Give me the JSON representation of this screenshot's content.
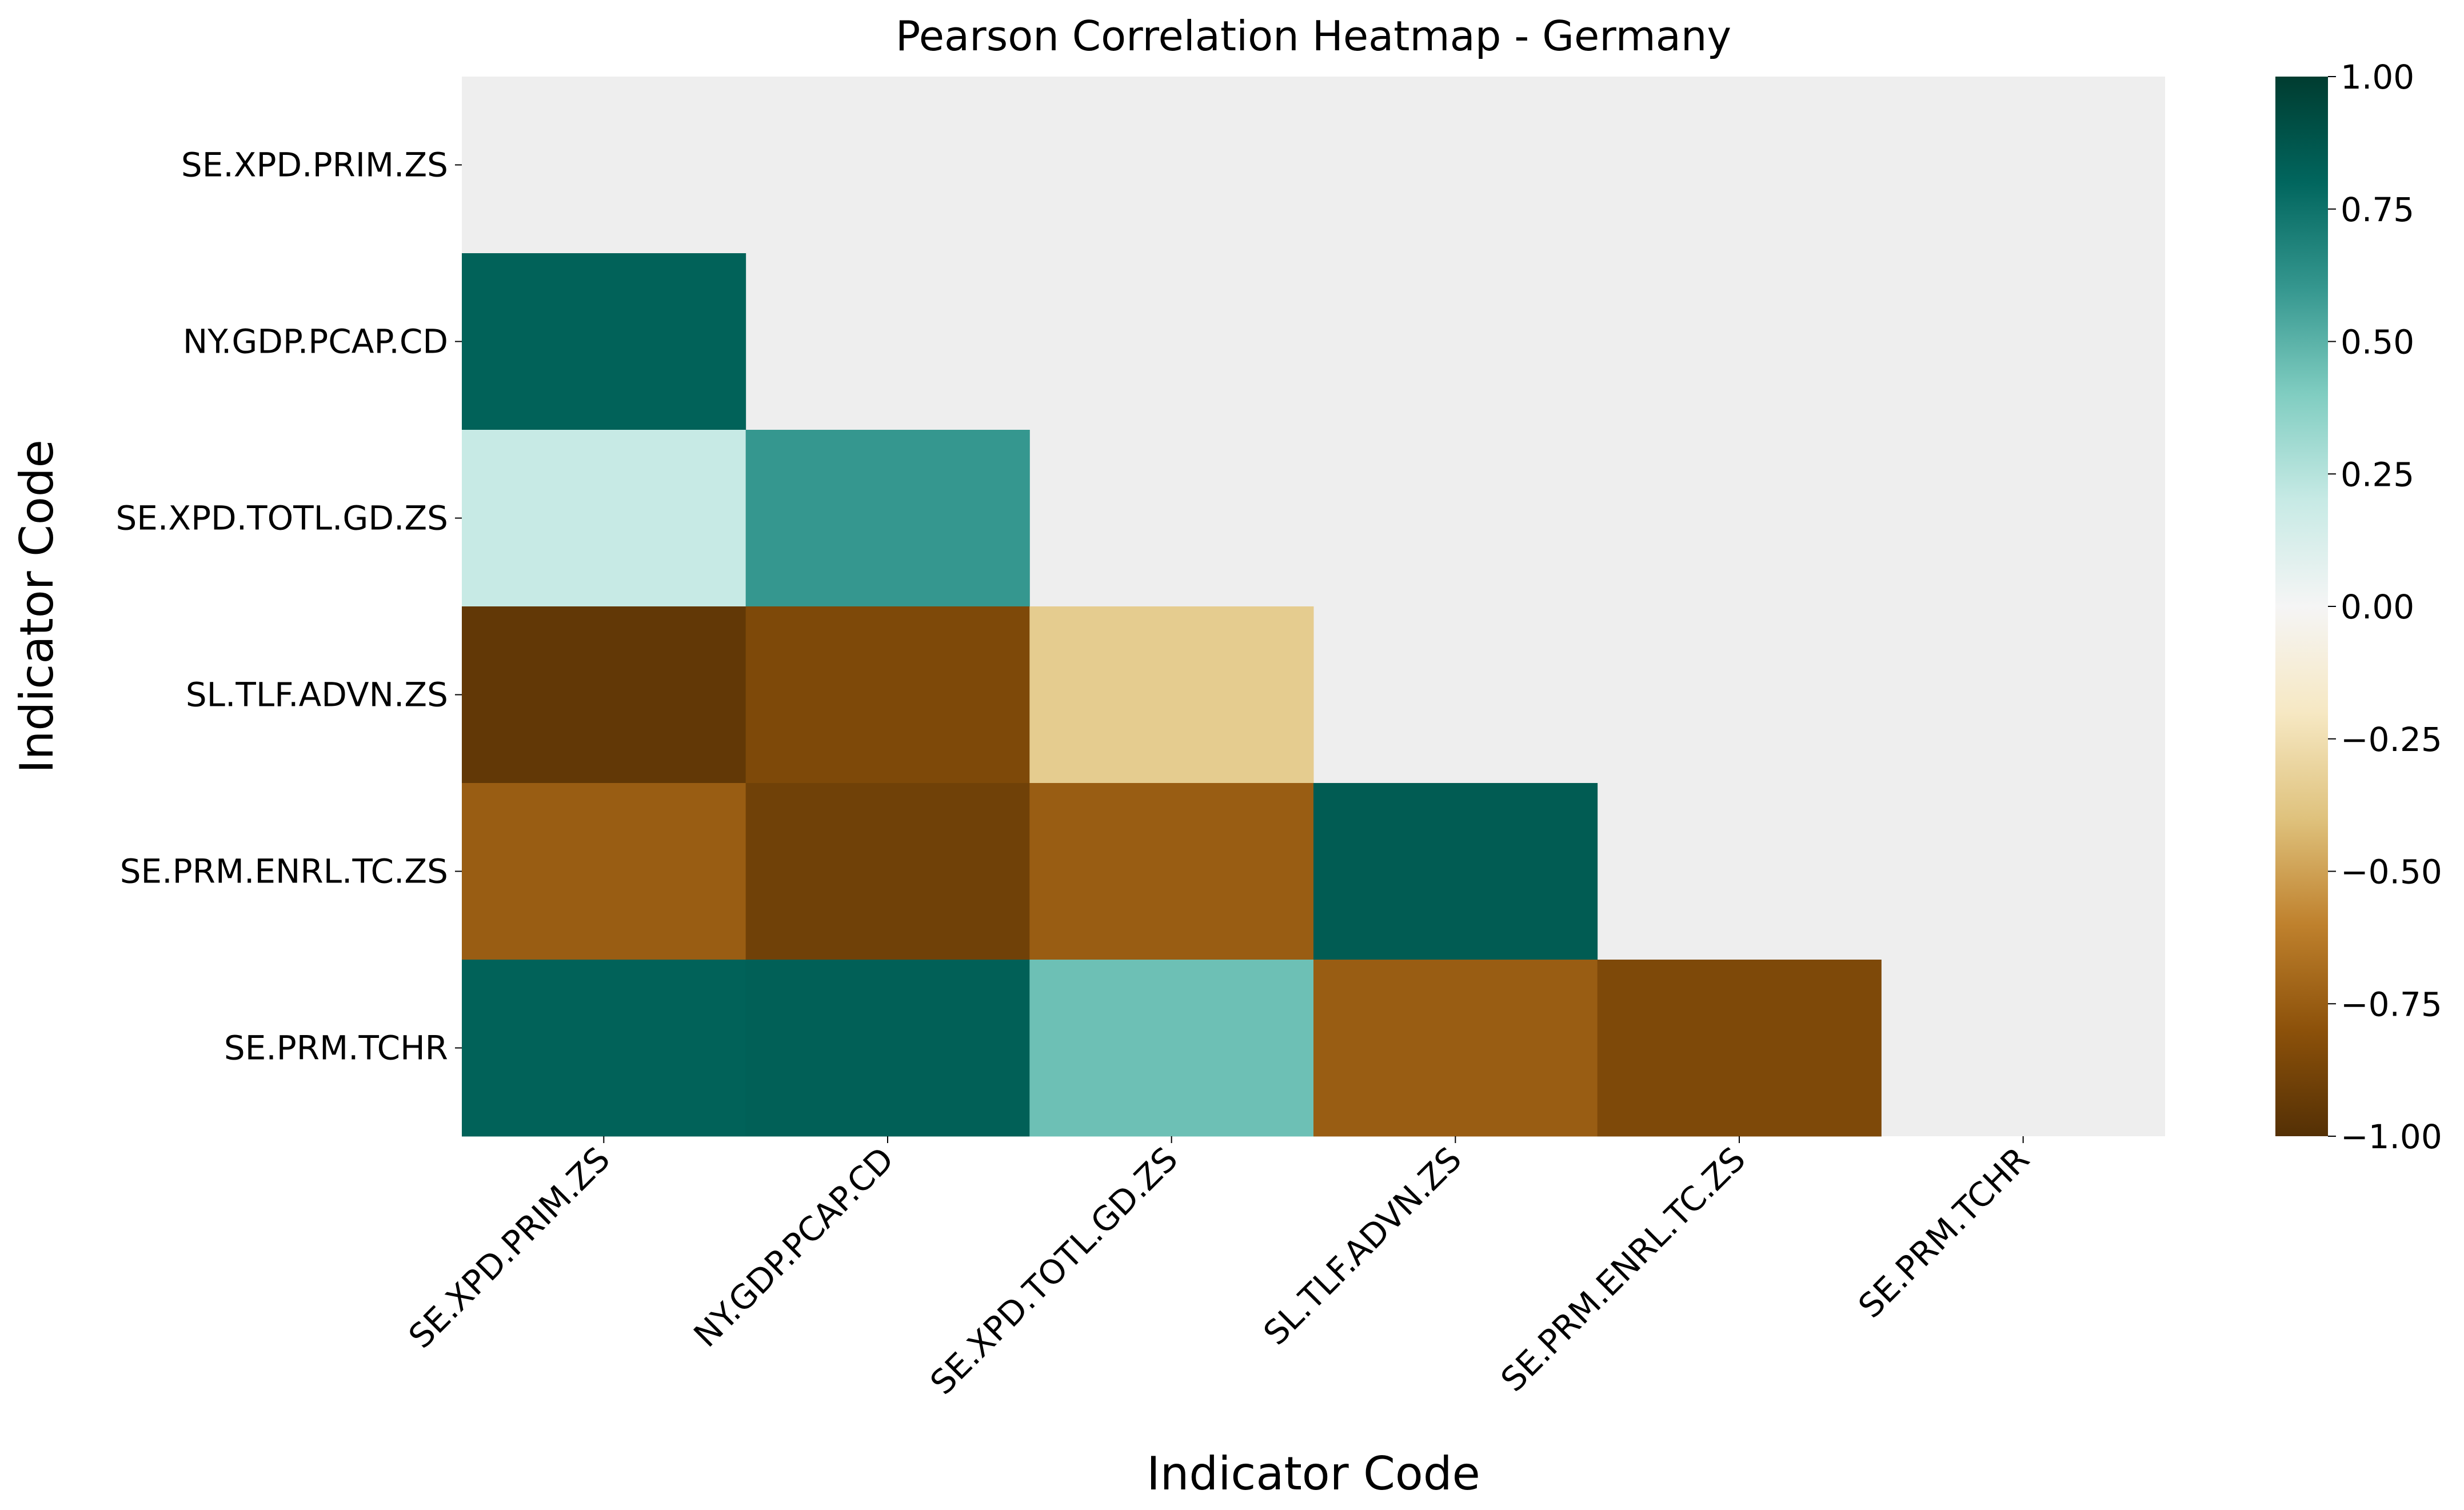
{
  "chart_data": {
    "type": "heatmap",
    "title": "Pearson Correlation Heatmap - Germany",
    "xlabel": "Indicator Code",
    "ylabel": "Indicator Code",
    "x_categories": [
      "SE.XPD.PRIM.ZS",
      "NY.GDP.PCAP.CD",
      "SE.XPD.TOTL.GD.ZS",
      "SL.TLF.ADVN.ZS",
      "SE.PRM.ENRL.TC.ZS",
      "SE.PRM.TCHR"
    ],
    "y_categories": [
      "SE.XPD.PRIM.ZS",
      "NY.GDP.PCAP.CD",
      "SE.XPD.TOTL.GD.ZS",
      "SL.TLF.ADVN.ZS",
      "SE.PRM.ENRL.TC.ZS",
      "SE.PRM.TCHR"
    ],
    "values": [
      [
        null,
        null,
        null,
        null,
        null,
        null
      ],
      [
        0.82,
        null,
        null,
        null,
        null,
        null
      ],
      [
        0.2,
        0.6,
        null,
        null,
        null,
        null
      ],
      [
        -0.95,
        -0.85,
        -0.35,
        null,
        null,
        null
      ],
      [
        -0.75,
        -0.9,
        -0.75,
        0.85,
        null,
        null
      ],
      [
        0.82,
        0.83,
        0.45,
        -0.75,
        -0.85,
        null
      ]
    ],
    "mask": "upper-triangle-and-diagonal",
    "colormap": "BrBG",
    "vmin": -1.0,
    "vmax": 1.0,
    "masked_color": "#eeeeee",
    "colorbar": {
      "position": "right",
      "ticks": [
        -1.0,
        -0.75,
        -0.5,
        -0.25,
        0.0,
        0.25,
        0.5,
        0.75,
        1.0
      ],
      "tick_labels": [
        "−1.00",
        "−0.75",
        "−0.50",
        "−0.25",
        "0.00",
        "0.25",
        "0.50",
        "0.75",
        "1.00"
      ]
    },
    "grid": false
  }
}
